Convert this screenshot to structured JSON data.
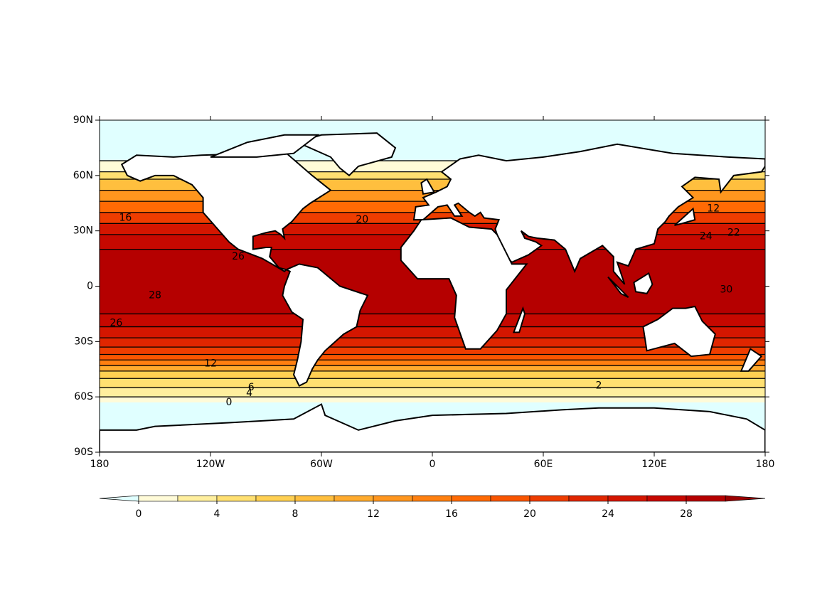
{
  "map": {
    "lon_ticks": [
      {
        "value": -180,
        "label": "180"
      },
      {
        "value": -120,
        "label": "120W"
      },
      {
        "value": -60,
        "label": "60W"
      },
      {
        "value": 0,
        "label": "0"
      },
      {
        "value": 60,
        "label": "60E"
      },
      {
        "value": 120,
        "label": "120E"
      },
      {
        "value": 180,
        "label": "180"
      }
    ],
    "lat_ticks": [
      {
        "value": 90,
        "label": "90N"
      },
      {
        "value": 60,
        "label": "60N"
      },
      {
        "value": 30,
        "label": "30N"
      },
      {
        "value": 0,
        "label": "0"
      },
      {
        "value": -30,
        "label": "30S"
      },
      {
        "value": -60,
        "label": "60S"
      },
      {
        "value": -90,
        "label": "90S"
      }
    ],
    "contour_labels": [
      {
        "value": 16,
        "lon": -166,
        "lat": 37
      },
      {
        "value": 20,
        "lon": -38,
        "lat": 36
      },
      {
        "value": 26,
        "lon": -105,
        "lat": 16
      },
      {
        "value": 28,
        "lon": -150,
        "lat": -5
      },
      {
        "value": 26,
        "lon": -171,
        "lat": -20
      },
      {
        "value": 12,
        "lon": -120,
        "lat": -42
      },
      {
        "value": 6,
        "lon": -98,
        "lat": -55
      },
      {
        "value": 4,
        "lon": -99,
        "lat": -58
      },
      {
        "value": 0,
        "lon": -110,
        "lat": -63
      },
      {
        "value": 2,
        "lon": 90,
        "lat": -54
      },
      {
        "value": 12,
        "lon": 152,
        "lat": 42
      },
      {
        "value": 24,
        "lon": 148,
        "lat": 27
      },
      {
        "value": 22,
        "lon": 163,
        "lat": 29
      },
      {
        "value": 30,
        "lon": 159,
        "lat": -2
      }
    ]
  },
  "colorbar": {
    "levels": [
      0,
      2,
      4,
      6,
      8,
      10,
      12,
      14,
      16,
      18,
      20,
      22,
      24,
      26,
      28,
      30
    ],
    "ticks": [
      0,
      4,
      8,
      12,
      16,
      20,
      24,
      28
    ],
    "colors": [
      "#fffbd8",
      "#ffef9e",
      "#ffe071",
      "#ffd052",
      "#ffbf3e",
      "#ffab2e",
      "#ff961e",
      "#ff8010",
      "#ff6a04",
      "#f95500",
      "#ee3d00",
      "#e02600",
      "#d41600",
      "#c60800",
      "#b50000"
    ],
    "under_color": "#e0ffff",
    "over_color": "#9a0000"
  }
}
